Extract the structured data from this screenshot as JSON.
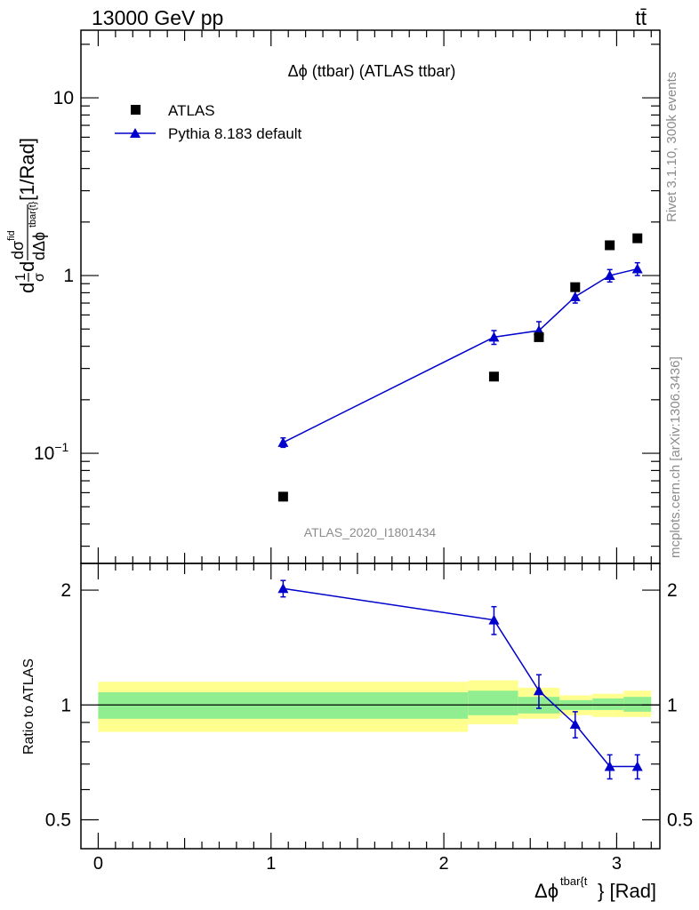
{
  "header": {
    "energy_label": "13000 GeV pp",
    "process_label": "tt̄"
  },
  "side_labels": {
    "rivet": "Rivet 3.1.10,  300k events",
    "mcplots": "mcplots.cern.ch [arXiv:1306.3436]"
  },
  "analysis_label": "ATLAS_2020_I1801434",
  "chart_data": [
    {
      "type": "scatter",
      "panel": "main",
      "title": "Δϕ (ttbar) (ATLAS ttbar)",
      "ylabel": "d¹/σ dσᴵᴰ / dΔϕᵗᵇᵃʳ⁽ᵗ [1/Rad]",
      "ylabel_text": "[1/Rad]",
      "yscale": "log",
      "xlim": [
        -0.1,
        3.25
      ],
      "ylim": [
        0.024,
        24
      ],
      "ytick_labels": [
        {
          "value": 0.1,
          "label": "10",
          "sup": "−1"
        },
        {
          "value": 1,
          "label": "1",
          "sup": ""
        },
        {
          "value": 10,
          "label": "10",
          "sup": ""
        }
      ],
      "legend": [
        {
          "label": "ATLAS",
          "marker": "square",
          "color": "#000000"
        },
        {
          "label": "Pythia 8.183 default",
          "marker": "triangle",
          "color": "#0000cc"
        }
      ],
      "series": [
        {
          "name": "ATLAS",
          "x": [
            1.07,
            2.29,
            2.55,
            2.76,
            2.96,
            3.12
          ],
          "y": [
            0.057,
            0.27,
            0.45,
            0.86,
            1.48,
            1.62
          ]
        },
        {
          "name": "Pythia 8.183 default",
          "x": [
            1.07,
            2.29,
            2.55,
            2.76,
            2.96,
            3.12
          ],
          "y": [
            0.115,
            0.45,
            0.49,
            0.76,
            1.0,
            1.09
          ],
          "err_low": [
            0.007,
            0.04,
            0.05,
            0.06,
            0.08,
            0.09
          ],
          "err_high": [
            0.007,
            0.04,
            0.06,
            0.06,
            0.08,
            0.09
          ]
        }
      ]
    },
    {
      "type": "line",
      "panel": "ratio",
      "ylabel": "Ratio to ATLAS",
      "yscale": "log",
      "xlabel": "Δϕ",
      "xlabel_sup": "tbar{t",
      "xlabel_suffix": "} [Rad]",
      "xlim": [
        -0.1,
        3.25
      ],
      "ylim": [
        0.42,
        2.35
      ],
      "ytick_labels": [
        {
          "value": 0.5,
          "label": "0.5"
        },
        {
          "value": 1,
          "label": "1"
        },
        {
          "value": 2,
          "label": "2"
        }
      ],
      "xtick_labels": [
        {
          "value": 0,
          "label": "0"
        },
        {
          "value": 1,
          "label": "1"
        },
        {
          "value": 2,
          "label": "2"
        },
        {
          "value": 3,
          "label": "3"
        }
      ],
      "bands": [
        {
          "x0": 0.0,
          "x1": 2.14,
          "inner": [
            0.92,
            1.08
          ],
          "outer": [
            0.85,
            1.15
          ]
        },
        {
          "x0": 2.14,
          "x1": 2.43,
          "inner": [
            0.94,
            1.09
          ],
          "outer": [
            0.89,
            1.16
          ]
        },
        {
          "x0": 2.43,
          "x1": 2.67,
          "inner": [
            0.95,
            1.05
          ],
          "outer": [
            0.92,
            1.11
          ]
        },
        {
          "x0": 2.67,
          "x1": 2.86,
          "inner": [
            0.97,
            1.03
          ],
          "outer": [
            0.94,
            1.06
          ]
        },
        {
          "x0": 2.86,
          "x1": 3.04,
          "inner": [
            0.97,
            1.04
          ],
          "outer": [
            0.93,
            1.07
          ]
        },
        {
          "x0": 3.04,
          "x1": 3.2,
          "inner": [
            0.96,
            1.05
          ],
          "outer": [
            0.93,
            1.09
          ]
        }
      ],
      "series": [
        {
          "name": "Pythia 8.183 default",
          "x": [
            1.07,
            2.29,
            2.55,
            2.76,
            2.96,
            3.12
          ],
          "y": [
            2.02,
            1.67,
            1.09,
            0.89,
            0.69,
            0.69
          ],
          "err_low": [
            0.1,
            0.14,
            0.11,
            0.07,
            0.05,
            0.05
          ],
          "err_high": [
            0.1,
            0.14,
            0.11,
            0.07,
            0.05,
            0.05
          ]
        }
      ],
      "colors": {
        "inner_band": "#90ee90",
        "outer_band": "#ffff90",
        "series": "#0000cc"
      }
    }
  ]
}
